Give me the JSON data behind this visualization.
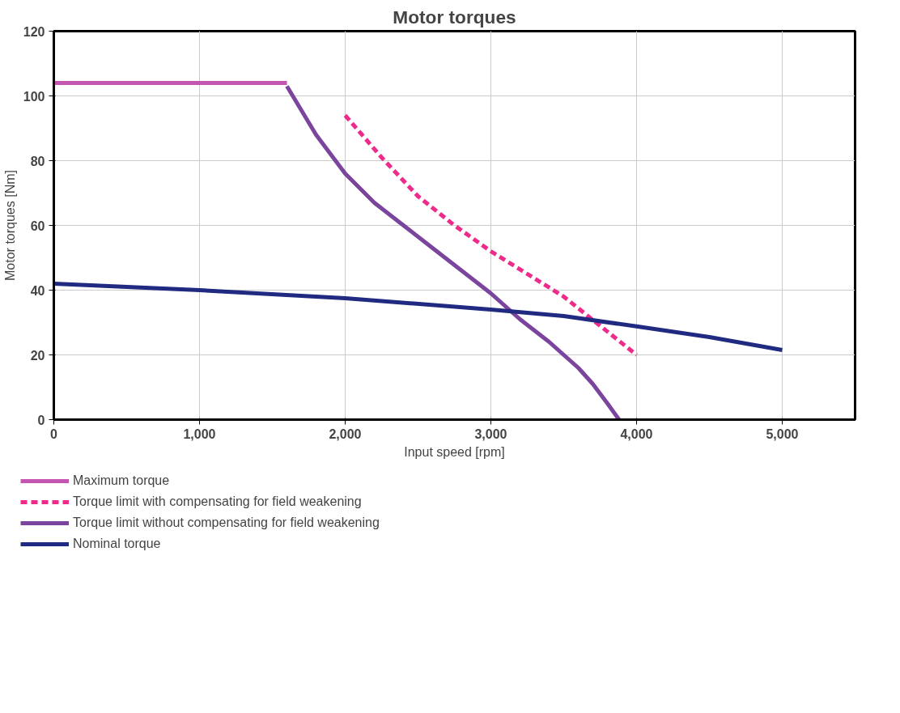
{
  "chart_data": {
    "type": "line",
    "title": "Motor torques",
    "xlabel": "Input speed [rpm]",
    "ylabel": "Motor torques [Nm]",
    "xlim": [
      0,
      5500
    ],
    "xticks": [
      {
        "value": 0,
        "label": "0"
      },
      {
        "value": 1000,
        "label": "1,000"
      },
      {
        "value": 2000,
        "label": "2,000"
      },
      {
        "value": 3000,
        "label": "3,000"
      },
      {
        "value": 4000,
        "label": "4,000"
      },
      {
        "value": 5000,
        "label": "5,000"
      }
    ],
    "ylim": [
      0,
      120
    ],
    "yticks": [
      0,
      20,
      40,
      60,
      80,
      100,
      120
    ],
    "grid": true,
    "legend": "bottom",
    "series": [
      {
        "name": "Maximum torque",
        "color": "#c455b0",
        "x": [
          0,
          1600
        ],
        "values": [
          104,
          104
        ]
      },
      {
        "name": "Torque limit with compensating for field weakening",
        "color": "#ee2a8a",
        "line_style": "dashed",
        "x": [
          2000,
          2250,
          2500,
          2750,
          3000,
          3250,
          3500,
          3750,
          4000
        ],
        "values": [
          94,
          81,
          69,
          60,
          52,
          45,
          38,
          29,
          20
        ]
      },
      {
        "name": "Torque limit without compensating for field weakening",
        "color": "#7b459e",
        "x": [
          1600,
          1800,
          2000,
          2200,
          2400,
          2600,
          2800,
          3000,
          3200,
          3400,
          3600,
          3700,
          3800,
          3880
        ],
        "values": [
          103,
          88,
          76,
          67,
          60,
          53,
          46,
          39,
          31,
          24,
          16,
          11,
          5,
          0
        ]
      },
      {
        "name": "Nominal torque",
        "color": "#1f2a80",
        "x": [
          0,
          1000,
          2000,
          3000,
          3500,
          4000,
          4500,
          5000
        ],
        "values": [
          42,
          40,
          37.5,
          34,
          32,
          28.8,
          25.5,
          21.5
        ]
      }
    ]
  }
}
